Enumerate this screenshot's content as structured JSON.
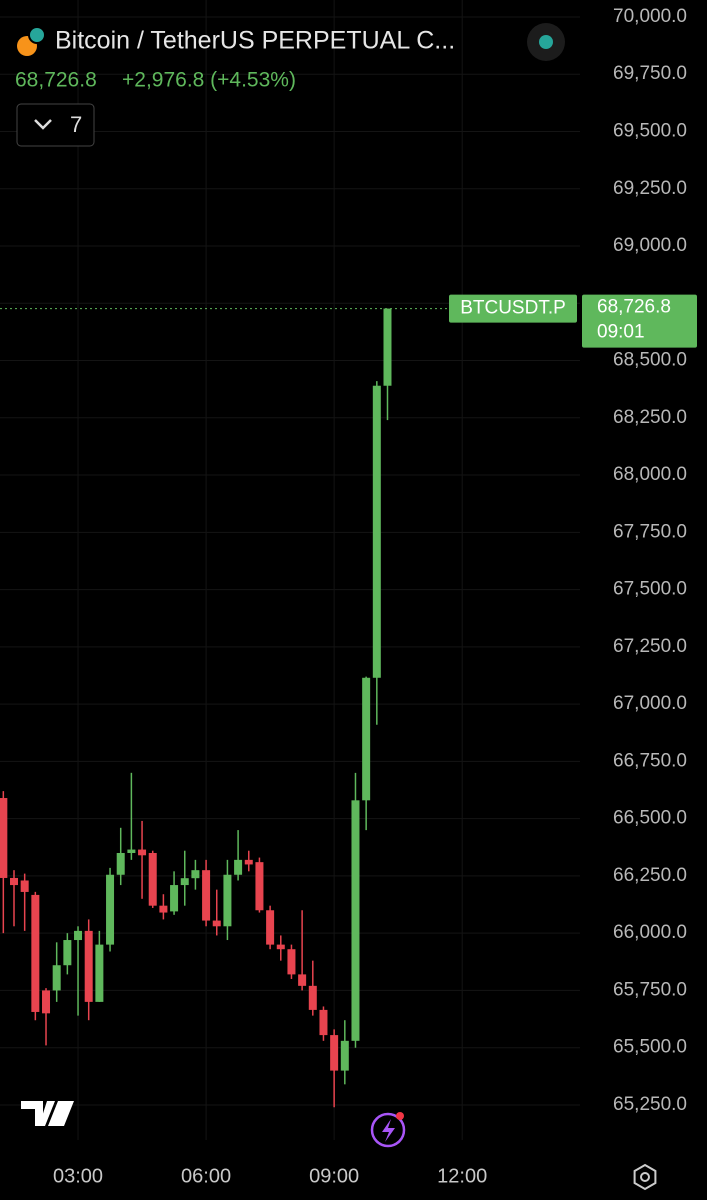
{
  "header": {
    "title": "Bitcoin / TetherUS PERPETUAL C...",
    "price": "68,726.8",
    "change": "+2,976.8 (+4.53%)",
    "indicators": "7"
  },
  "chart_data": {
    "type": "candlestick",
    "x": [
      1.25,
      1.5,
      1.75,
      2.0,
      2.25,
      2.5,
      2.75,
      3.0,
      3.25,
      3.5,
      3.75,
      4.0,
      4.25,
      4.5,
      4.75,
      5.0,
      5.25,
      5.5,
      5.75,
      6.0,
      6.25,
      6.5,
      6.75,
      7.0,
      7.25,
      7.5,
      7.75,
      8.0,
      8.25,
      8.5,
      8.75,
      9.0,
      9.25,
      9.5,
      9.75,
      10.0,
      10.25
    ],
    "open": [
      66590,
      66241,
      66230,
      66167,
      65750,
      65750,
      65860,
      65970,
      66010,
      65700,
      65950,
      66255,
      66350,
      66365,
      66350,
      66120,
      66095,
      66210,
      66240,
      66275,
      66055,
      66030,
      66255,
      66320,
      66310,
      66100,
      65950,
      65930,
      65820,
      65770,
      65665,
      65555,
      65400,
      65530,
      66580,
      67115,
      68390
    ],
    "high": [
      66620,
      66275,
      66260,
      66180,
      65760,
      65960,
      66000,
      66030,
      66060,
      66010,
      66285,
      66460,
      66700,
      66490,
      66360,
      66170,
      66270,
      66360,
      66320,
      66320,
      66190,
      66320,
      66450,
      66360,
      66330,
      66120,
      65990,
      65950,
      66100,
      65880,
      65680,
      65580,
      65620,
      66700,
      67120,
      68410,
      68726.8
    ],
    "low": [
      66000,
      66030,
      66010,
      65620,
      65510,
      65700,
      65820,
      65640,
      65620,
      65700,
      65920,
      66210,
      66320,
      66150,
      66110,
      66060,
      66080,
      66120,
      66190,
      66030,
      65990,
      65970,
      66230,
      66270,
      66090,
      65930,
      65880,
      65800,
      65750,
      65640,
      65530,
      65240,
      65340,
      65500,
      66450,
      66910,
      68240
    ],
    "close": [
      66241,
      66210,
      66180,
      65656,
      65650,
      65860,
      65970,
      66010,
      65700,
      65950,
      66255,
      66350,
      66365,
      66340,
      66120,
      66090,
      66210,
      66240,
      66275,
      66055,
      66030,
      66255,
      66320,
      66300,
      66100,
      65950,
      65930,
      65820,
      65770,
      65665,
      65555,
      65400,
      65530,
      66580,
      67115,
      68390,
      68726.8
    ],
    "up_color": "#5fb85c",
    "down_color": "#e8444f",
    "xlim": [
      1.172,
      14.76
    ],
    "ylim": [
      65097,
      70074
    ],
    "grid": true,
    "xticks": [
      {
        "value": 3,
        "label": "03:00"
      },
      {
        "value": 6,
        "label": "06:00"
      },
      {
        "value": 9,
        "label": "09:00"
      },
      {
        "value": 12,
        "label": "12:00"
      }
    ],
    "yticks": [
      {
        "value": 65250,
        "label": "65,250.0"
      },
      {
        "value": 65500,
        "label": "65,500.0"
      },
      {
        "value": 65750,
        "label": "65,750.0"
      },
      {
        "value": 66000,
        "label": "66,000.0"
      },
      {
        "value": 66250,
        "label": "66,250.0"
      },
      {
        "value": 66500,
        "label": "66,500.0"
      },
      {
        "value": 66750,
        "label": "66,750.0"
      },
      {
        "value": 67000,
        "label": "67,000.0"
      },
      {
        "value": 67250,
        "label": "67,250.0"
      },
      {
        "value": 67500,
        "label": "67,500.0"
      },
      {
        "value": 67750,
        "label": "67,750.0"
      },
      {
        "value": 68000,
        "label": "68,000.0"
      },
      {
        "value": 68250,
        "label": "68,250.0"
      },
      {
        "value": 68500,
        "label": "68,500.0"
      },
      {
        "value": 68750,
        "label": "68,750.0"
      },
      {
        "value": 69000,
        "label": "69,000.0"
      },
      {
        "value": 69250,
        "label": "69,250.0"
      },
      {
        "value": 69500,
        "label": "69,500.0"
      },
      {
        "value": 69750,
        "label": "69,750.0"
      },
      {
        "value": 70000,
        "label": "70,000.0"
      }
    ],
    "price_line": {
      "value": 68726.8,
      "label": "68,726.8",
      "symbol": "BTCUSDT.P",
      "countdown": "09:01"
    }
  }
}
